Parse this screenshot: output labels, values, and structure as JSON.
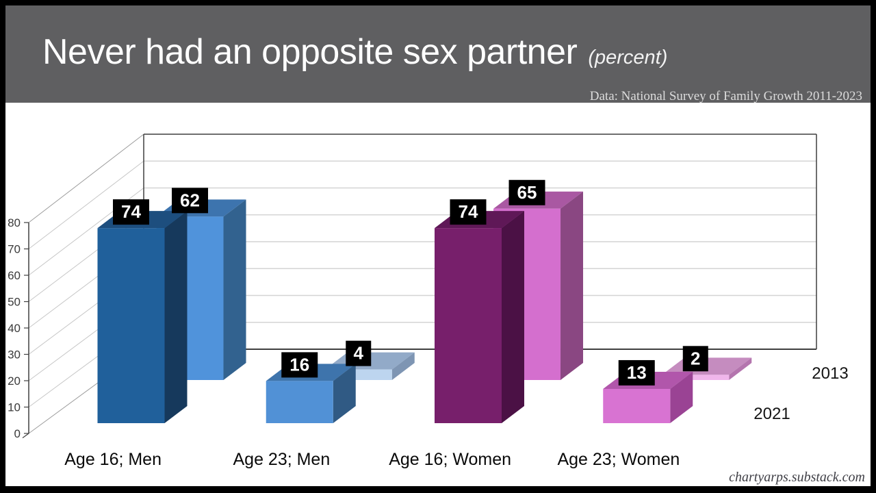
{
  "header": {
    "title": "Never had an opposite sex partner",
    "title_suffix": "(percent)",
    "source": "Data: National Survey of Family Growth 2011-2023"
  },
  "footer": {
    "credit": "chartyarps.substack.com"
  },
  "chart_data": {
    "type": "bar",
    "projection": "3d-oblique",
    "title": "Never had an opposite sex partner (percent)",
    "categories": [
      "Age 16; Men",
      "Age 23; Men",
      "Age 16; Women",
      "Age 23; Women"
    ],
    "series": [
      {
        "name": "2013",
        "row": "back",
        "values": [
          62,
          4,
          65,
          2
        ],
        "bar_colors": [
          {
            "front": "#5093DB",
            "top": "#3D74AE",
            "side": "#32628F"
          },
          {
            "front": "#BDD5EF",
            "top": "#92AAC8",
            "side": "#7E95B3"
          },
          {
            "front": "#D46FCE",
            "top": "#A958A2",
            "side": "#8A4782"
          },
          {
            "front": "#F0B6EB",
            "top": "#C58CBF",
            "side": "#B475AE"
          }
        ]
      },
      {
        "name": "2021",
        "row": "front",
        "values": [
          74,
          16,
          74,
          13
        ],
        "bar_colors": [
          {
            "front": "#20609B",
            "top": "#1D4E7E",
            "side": "#16395C"
          },
          {
            "front": "#5191D6",
            "top": "#3E74AC",
            "side": "#305A84"
          },
          {
            "front": "#771F6B",
            "top": "#5F1857",
            "side": "#4B1145"
          },
          {
            "front": "#D873D2",
            "top": "#B156AB",
            "side": "#9A4394"
          }
        ]
      }
    ],
    "ylim": [
      0,
      80
    ],
    "yticks": [
      0,
      10,
      20,
      30,
      40,
      50,
      60,
      70,
      80
    ],
    "grid": true,
    "value_labels": true,
    "legend_position": "right-of-rows"
  },
  "colors": {
    "frame": "#000000",
    "header_bg": "#5F5F61",
    "chart_bg": "#FFFFFF",
    "wall_grid": "#D4D4D4",
    "wall_diagonal": "#C6C6C6",
    "wall_edge": "#3F3F3F",
    "tick_text": "#3A3A3A",
    "category_text": "#0A0A0A",
    "series_label_text": "#141414",
    "value_box_bg": "#000000",
    "value_box_text": "#FFFFFF",
    "title_text": "#FFFFFF",
    "source_text": "#DCDCDC",
    "credit_text": "#3F3F46"
  }
}
